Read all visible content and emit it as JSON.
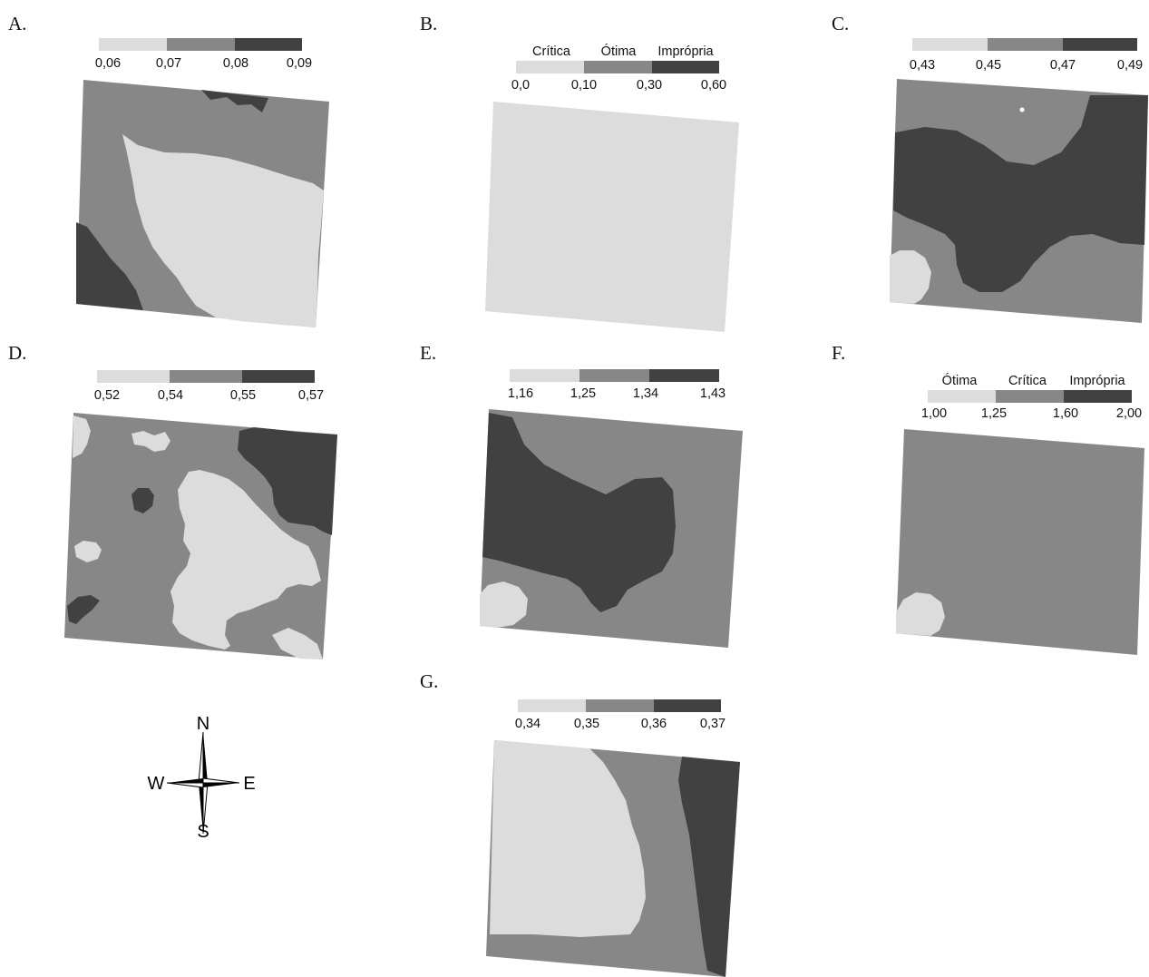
{
  "colors": {
    "light": "#dcdcdc",
    "medium": "#878787",
    "dark": "#414141",
    "background": "#ffffff"
  },
  "panels": [
    {
      "id": "A",
      "letter": "A.",
      "ticks": [
        "0,06",
        "0,07",
        "0,08",
        "0,09"
      ],
      "classes": []
    },
    {
      "id": "B",
      "letter": "B.",
      "ticks": [
        "0,0",
        "0,10",
        "0,30",
        "0,60"
      ],
      "classes": [
        "Crítica",
        "Ótima",
        "Imprópria"
      ]
    },
    {
      "id": "C",
      "letter": "C.",
      "ticks": [
        "0,43",
        "0,45",
        "0,47",
        "0,49"
      ],
      "classes": []
    },
    {
      "id": "D",
      "letter": "D.",
      "ticks": [
        "0,52",
        "0,54",
        "0,55",
        "0,57"
      ],
      "classes": []
    },
    {
      "id": "E",
      "letter": "E.",
      "ticks": [
        "1,16",
        "1,25",
        "1,34",
        "1,43"
      ],
      "classes": []
    },
    {
      "id": "F",
      "letter": "F.",
      "ticks": [
        "1,00",
        "1,25",
        "1,60",
        "2,00"
      ],
      "classes": [
        "Ótima",
        "Crítica",
        "Imprópria"
      ]
    },
    {
      "id": "G",
      "letter": "G.",
      "ticks": [
        "0,34",
        "0,35",
        "0,36",
        "0,37"
      ],
      "classes": []
    }
  ],
  "compass": {
    "north": "N",
    "south": "S",
    "east": "E",
    "west": "W",
    "icon": "compass-rose-icon"
  }
}
